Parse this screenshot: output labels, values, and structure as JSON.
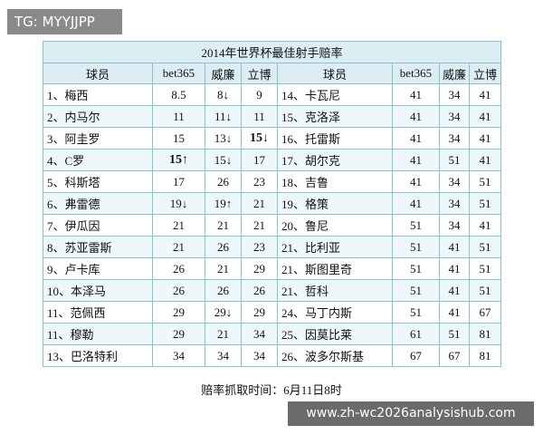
{
  "watermark_top": "TG: MYYJJPP",
  "watermark_bottom": "www.zh-wc2026analysishub.com",
  "table": {
    "title": "2014年世界杯最佳射手赔率",
    "header": [
      "球员",
      "bet365",
      "威廉",
      "立博",
      "球员",
      "bet365",
      "威廉",
      "立博"
    ],
    "rows": [
      [
        "1、梅西",
        "8.5",
        "8↓",
        "9",
        "14、卡瓦尼",
        "41",
        "34",
        "41"
      ],
      [
        "2、内马尔",
        "11",
        "11↓",
        "11",
        "15、克洛泽",
        "41",
        "34",
        "41"
      ],
      [
        "3、阿圭罗",
        "15",
        "13↓",
        "15↓",
        "16、托雷斯",
        "41",
        "34",
        "41"
      ],
      [
        "4、C罗",
        "15↑",
        "15↓",
        "17",
        "17、胡尔克",
        "41",
        "51",
        "41"
      ],
      [
        "5、科斯塔",
        "17",
        "26",
        "23",
        "18、吉鲁",
        "41",
        "34",
        "51"
      ],
      [
        "6、弗雷德",
        "19↓",
        "19↑",
        "21",
        "19、格策",
        "41",
        "34",
        "51"
      ],
      [
        "7、伊瓜因",
        "21",
        "21",
        "21",
        "20、鲁尼",
        "51",
        "34",
        "41"
      ],
      [
        "8、苏亚雷斯",
        "21",
        "26",
        "23",
        "21、比利亚",
        "51",
        "41",
        "51"
      ],
      [
        "9、卢卡库",
        "26",
        "21",
        "29",
        "21、斯图里奇",
        "51",
        "41",
        "51"
      ],
      [
        "10、本泽马",
        "26",
        "26",
        "26",
        "21、哲科",
        "51",
        "41",
        "51"
      ],
      [
        "11、范佩西",
        "29",
        "29↓",
        "29",
        "24、马丁内斯",
        "51",
        "41",
        "67"
      ],
      [
        "11、穆勒",
        "29",
        "21",
        "34",
        "25、因莫比莱",
        "61",
        "51",
        "81"
      ],
      [
        "13、巴洛特利",
        "34",
        "34",
        "34",
        "26、波多尔斯基",
        "67",
        "67",
        "81"
      ]
    ]
  },
  "caption": "赔率抓取时间：6月11日8时"
}
